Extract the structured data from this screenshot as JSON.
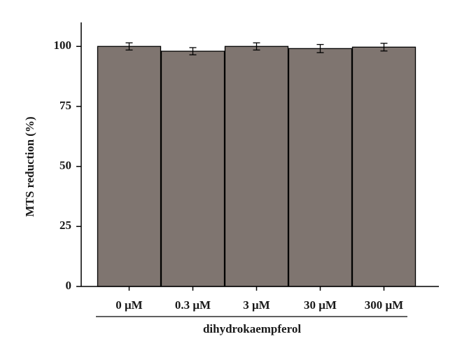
{
  "chart_data": {
    "type": "bar",
    "categories": [
      "0 μM",
      "0.3 μM",
      "3 μM",
      "30 μM",
      "300 μM"
    ],
    "values": [
      100,
      98.0,
      100,
      99.1,
      99.7
    ],
    "errors": [
      1.5,
      1.5,
      1.5,
      1.7,
      1.6
    ],
    "color": "#7f7570",
    "ylabel": "MTS reduction (%)",
    "xlabel": "dihydrokaempferol",
    "ylim": [
      0,
      110
    ],
    "yticks": [
      0,
      25,
      50,
      75,
      100
    ],
    "grid": false
  }
}
